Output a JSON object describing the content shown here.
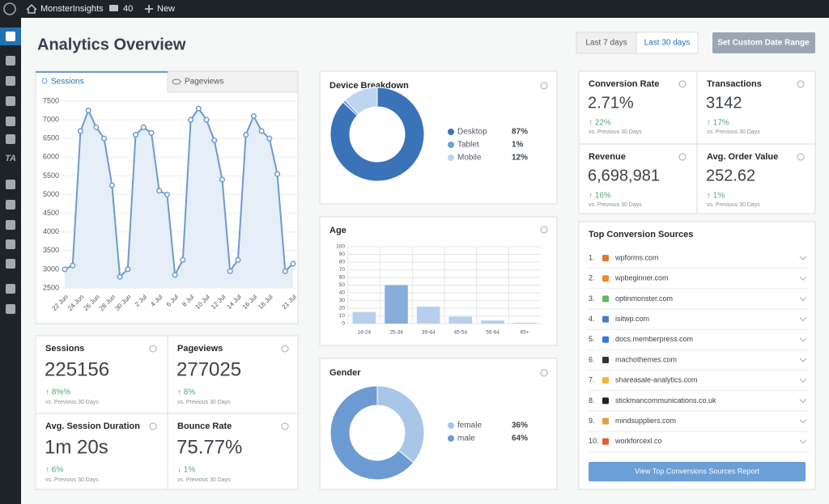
{
  "admin_bar": {
    "site": "MonsterInsights",
    "comments": "40",
    "new": "New"
  },
  "sidebar": {
    "ta": "TA"
  },
  "header": {
    "title": "Analytics Overview",
    "buttons": [
      "Last 7 days",
      "Last 30 days",
      "Set Custom Date Range"
    ]
  },
  "tabs": [
    "Sessions",
    "Pageviews"
  ],
  "chart_data": [
    {
      "type": "line",
      "categories": [
        "22 Jun",
        null,
        "24 Jun",
        null,
        "26 Jun",
        null,
        "28 Jun",
        null,
        "30 Jun",
        null,
        "2 Jul",
        null,
        "4 Jul",
        null,
        "6 Jul",
        null,
        "8 Jul",
        null,
        "10 Jul",
        null,
        "12 Jul",
        null,
        "14 Jul",
        null,
        "16 Jul",
        null,
        "18 Jul",
        null,
        null,
        "21 Jul"
      ],
      "values": [
        3000,
        3100,
        6700,
        7250,
        6800,
        6500,
        5250,
        2800,
        3000,
        6600,
        6800,
        6650,
        5100,
        5000,
        2850,
        3250,
        7000,
        7300,
        7000,
        6450,
        5400,
        2950,
        3250,
        6600,
        7100,
        6700,
        6500,
        5550,
        2950,
        3150
      ],
      "color": "#6b9bd2",
      "ylim": [
        2500,
        7500
      ],
      "yticks": [
        2500,
        3000,
        3500,
        4000,
        4500,
        5000,
        5500,
        6000,
        6500,
        7000,
        7500
      ],
      "grid": true
    },
    {
      "type": "pie",
      "title": "Device Breakdown",
      "categories": [
        "Desktop",
        "Tablet",
        "Mobile"
      ],
      "values": [
        87,
        1,
        12
      ],
      "value_labels": [
        "87%",
        "1%",
        "12%"
      ],
      "colors": [
        "#3b73b9",
        "#6aa0d8",
        "#bcd5f0"
      ]
    },
    {
      "type": "bar",
      "title": "Age",
      "categories": [
        "18-24",
        "25-34",
        "35-44",
        "45-54",
        "55-64",
        "65+"
      ],
      "values": [
        15,
        50,
        22,
        9,
        4,
        1
      ],
      "colors": [
        "#b5cfee",
        "#86addc",
        "#b5cfee",
        "#b5cfee",
        "#b5cfee",
        "#b5cfee"
      ],
      "ylim": [
        0,
        100
      ],
      "yticks": [
        0,
        10,
        20,
        30,
        40,
        50,
        60,
        70,
        80,
        90,
        100
      ],
      "grid": true
    },
    {
      "type": "pie",
      "title": "Gender",
      "categories": [
        "female",
        "male"
      ],
      "values": [
        36,
        64
      ],
      "value_labels": [
        "36%",
        "64%"
      ],
      "colors": [
        "#a9c6e8",
        "#6b9bd2"
      ]
    }
  ],
  "stats": [
    {
      "label": "Sessions",
      "value": "225156",
      "change": "↑ 8%%",
      "compare": "vs. Previous 30 Days"
    },
    {
      "label": "Pageviews",
      "value": "277025",
      "change": "↑ 8%",
      "compare": "vs. Previous 30 Days"
    },
    {
      "label": "Avg. Session Duration",
      "value": "1m 20s",
      "change": "↑ 6%",
      "compare": "vs. Previous 30 Days"
    },
    {
      "label": "Bounce Rate",
      "value": "75.77%",
      "change": "↓ 1%",
      "compare": "vs. Previous 30 Days"
    }
  ],
  "conversion_stats": [
    {
      "label": "Conversion Rate",
      "value": "2.71%",
      "change": "↑ 22%",
      "compare": "vs. Previous 30 Days"
    },
    {
      "label": "Transactions",
      "value": "3142",
      "change": "↑ 17%",
      "compare": "vs. Previous 30 Days"
    },
    {
      "label": "Revenue",
      "value": "6,698,981",
      "change": "↑ 16%",
      "compare": "vs. Previous 30 Days"
    },
    {
      "label": "Avg. Order Value",
      "value": "252.62",
      "change": "↑ 1%",
      "compare": "vs. Previous 30 Days"
    }
  ],
  "top_sources": {
    "title": "Top Conversion Sources",
    "items": [
      {
        "rank": "1.",
        "name": "wpforms.com"
      },
      {
        "rank": "2.",
        "name": "wpbeginner.com"
      },
      {
        "rank": "3.",
        "name": "optinmonster.com"
      },
      {
        "rank": "4.",
        "name": "isitwp.com"
      },
      {
        "rank": "5.",
        "name": "docs.memberpress.com"
      },
      {
        "rank": "6.",
        "name": "machothemes.com"
      },
      {
        "rank": "7.",
        "name": "shareasale-analytics.com"
      },
      {
        "rank": "8.",
        "name": "stickmancommunications.co.uk"
      },
      {
        "rank": "9.",
        "name": "mindsuppliers.com"
      },
      {
        "rank": "10.",
        "name": "workforcexl.co"
      }
    ],
    "button": "View Top Conversions Sources Report"
  }
}
